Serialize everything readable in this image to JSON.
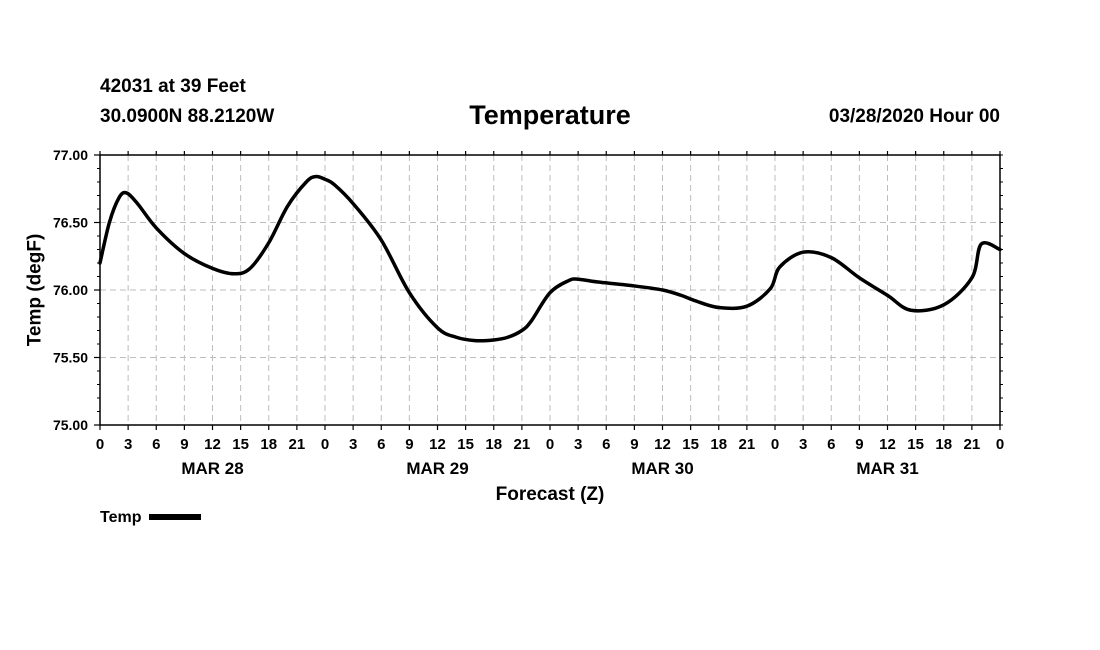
{
  "header": {
    "station": "42031 at 39 Feet",
    "location": "30.0900N 88.2120W",
    "issued": "03/28/2020 Hour 00"
  },
  "legend": {
    "label": "Temp"
  },
  "chart_data": {
    "type": "line",
    "title": "Temperature",
    "xlabel": "Forecast (Z)",
    "ylabel": "Temp (degF)",
    "ylim": [
      75.0,
      77.0
    ],
    "xlim": [
      0,
      96
    ],
    "y_ticks": [
      "75.00",
      "75.50",
      "76.00",
      "76.50",
      "77.00"
    ],
    "x_tick_hours": [
      0,
      3,
      6,
      9,
      12,
      15,
      18,
      21,
      24,
      27,
      30,
      33,
      36,
      39,
      42,
      45,
      48,
      51,
      54,
      57,
      60,
      63,
      66,
      69,
      72,
      75,
      78,
      81,
      84,
      87,
      90,
      93,
      96
    ],
    "x_tick_labels": [
      "0",
      "3",
      "6",
      "9",
      "12",
      "15",
      "18",
      "21",
      "0",
      "3",
      "6",
      "9",
      "12",
      "15",
      "18",
      "21",
      "0",
      "3",
      "6",
      "9",
      "12",
      "15",
      "18",
      "21",
      "0",
      "3",
      "6",
      "9",
      "12",
      "15",
      "18",
      "21",
      "0"
    ],
    "day_labels": [
      {
        "label": "MAR 28",
        "hour": 12
      },
      {
        "label": "MAR 29",
        "hour": 36
      },
      {
        "label": "MAR 30",
        "hour": 60
      },
      {
        "label": "MAR 31",
        "hour": 84
      }
    ],
    "grid": true,
    "series": [
      {
        "name": "Temp",
        "x": [
          0,
          1,
          2,
          2.8,
          4,
          6,
          9,
          12,
          14.3,
          16,
          18,
          20,
          22,
          23,
          24,
          25,
          27,
          30,
          33,
          36,
          38,
          40,
          42,
          43.5,
          45,
          46,
          48,
          50,
          51,
          53,
          57,
          60,
          62,
          63.5,
          66,
          69,
          71.5,
          72.5,
          75,
          78,
          81,
          84,
          86.5,
          90,
          93,
          94,
          96
        ],
        "y": [
          76.2,
          76.5,
          76.68,
          76.72,
          76.64,
          76.46,
          76.27,
          76.16,
          76.12,
          76.16,
          76.35,
          76.62,
          76.8,
          76.84,
          76.82,
          76.78,
          76.64,
          76.37,
          75.98,
          75.72,
          75.65,
          75.625,
          75.63,
          75.65,
          75.7,
          75.77,
          75.98,
          76.07,
          76.08,
          76.06,
          76.03,
          76.0,
          75.96,
          75.92,
          75.87,
          75.88,
          76.01,
          76.17,
          76.28,
          76.24,
          76.09,
          75.96,
          75.85,
          75.89,
          76.09,
          76.34,
          76.3
        ]
      }
    ]
  }
}
